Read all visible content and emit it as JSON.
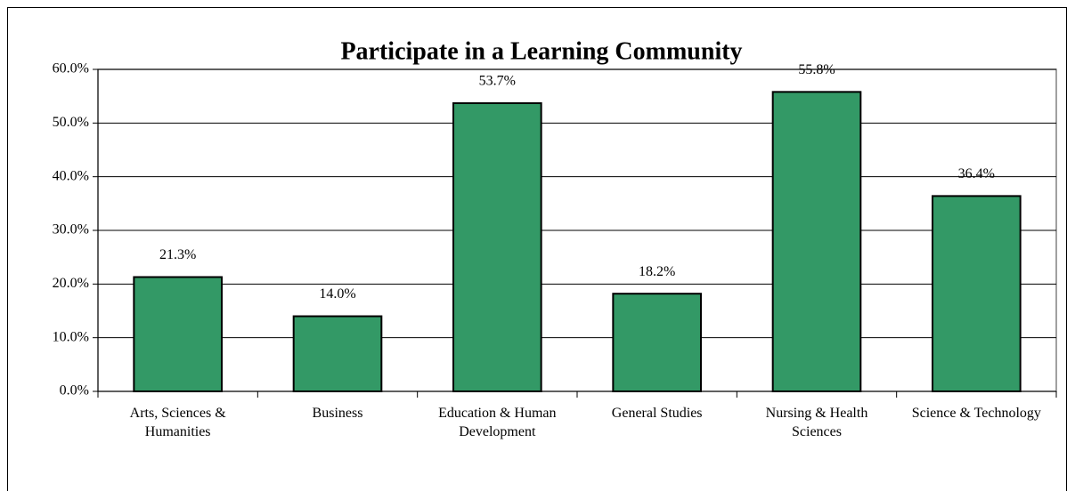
{
  "chart_data": {
    "type": "bar",
    "title": "Participate in a Learning Community",
    "categories": [
      "Arts, Sciences & Humanities",
      "Business",
      "Education & Human Development",
      "General Studies",
      "Nursing & Health Sciences",
      "Science & Technology"
    ],
    "values": [
      21.3,
      14.0,
      53.7,
      18.2,
      55.8,
      36.4
    ],
    "value_labels": [
      "21.3%",
      "14.0%",
      "53.7%",
      "18.2%",
      "55.8%",
      "36.4%"
    ],
    "color": "#339966",
    "ylim": [
      0,
      60
    ],
    "yticks": [
      {
        "value": 0,
        "label": "0.0%"
      },
      {
        "value": 10,
        "label": "10.0%"
      },
      {
        "value": 20,
        "label": "20.0%"
      },
      {
        "value": 30,
        "label": "30.0%"
      },
      {
        "value": 40,
        "label": "40.0%"
      },
      {
        "value": 50,
        "label": "50.0%"
      },
      {
        "value": 60,
        "label": "60.0%"
      }
    ],
    "grid": true
  }
}
